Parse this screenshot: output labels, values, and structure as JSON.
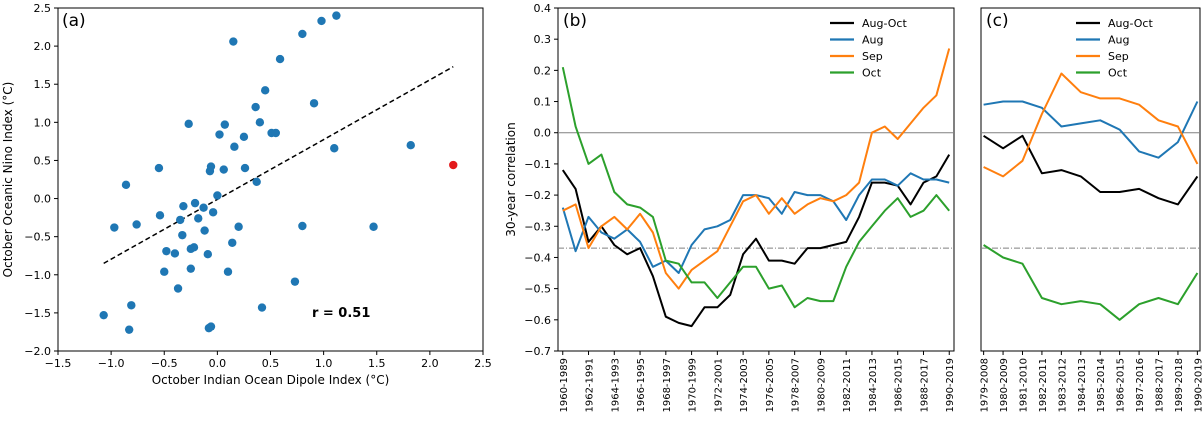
{
  "chart_data": [
    {
      "type": "scatter",
      "panel_label": "(a)",
      "xlabel": "October Indian Ocean Dipole Index ($^\\circ$C)",
      "ylabel": "October Oceanic Nino Index ($^\\circ$C)",
      "xlim": [
        -1.5,
        2.5
      ],
      "ylim": [
        -2.0,
        2.5
      ],
      "xticks": [
        -1.5,
        -1.0,
        -0.5,
        0.0,
        0.5,
        1.0,
        1.5,
        2.0,
        2.5
      ],
      "yticks": [
        -2.0,
        -1.5,
        -1.0,
        -0.5,
        0.0,
        0.5,
        1.0,
        1.5,
        2.0,
        2.5
      ],
      "xtick_labels": [
        "−1.5",
        "−1.0",
        "−0.5",
        "0.0",
        "0.5",
        "1.0",
        "1.5",
        "2.0",
        "2.5"
      ],
      "ytick_labels": [
        "−2.0",
        "−1.5",
        "−1.0",
        "−0.5",
        "0.0",
        "0.5",
        "1.0",
        "1.5",
        "2.0",
        "2.5"
      ],
      "annotation": "r = 0.51",
      "point_color": "#1f77b4",
      "highlight_color": "#e31a1c",
      "points": [
        [
          -1.07,
          -1.53
        ],
        [
          -0.97,
          -0.38
        ],
        [
          -0.83,
          -1.72
        ],
        [
          -0.81,
          -1.4
        ],
        [
          -0.86,
          0.18
        ],
        [
          -0.76,
          -0.34
        ],
        [
          -0.55,
          0.4
        ],
        [
          -0.54,
          -0.22
        ],
        [
          -0.5,
          -0.96
        ],
        [
          -0.48,
          -0.69
        ],
        [
          -0.4,
          -0.72
        ],
        [
          -0.37,
          -1.18
        ],
        [
          -0.35,
          -0.28
        ],
        [
          -0.33,
          -0.48
        ],
        [
          -0.32,
          -0.1
        ],
        [
          -0.27,
          0.98
        ],
        [
          -0.25,
          -0.66
        ],
        [
          -0.25,
          -0.92
        ],
        [
          -0.22,
          -0.64
        ],
        [
          -0.21,
          -0.06
        ],
        [
          -0.18,
          -0.26
        ],
        [
          -0.13,
          -0.12
        ],
        [
          -0.12,
          -0.42
        ],
        [
          -0.09,
          -0.73
        ],
        [
          -0.08,
          -1.7
        ],
        [
          -0.06,
          -1.68
        ],
        [
          -0.07,
          0.36
        ],
        [
          -0.06,
          0.42
        ],
        [
          -0.04,
          -0.18
        ],
        [
          0.0,
          0.04
        ],
        [
          0.02,
          0.84
        ],
        [
          0.06,
          0.38
        ],
        [
          0.07,
          0.97
        ],
        [
          0.1,
          -0.96
        ],
        [
          0.14,
          -0.58
        ],
        [
          0.15,
          2.06
        ],
        [
          0.16,
          0.68
        ],
        [
          0.2,
          -0.37
        ],
        [
          0.26,
          0.4
        ],
        [
          0.25,
          0.81
        ],
        [
          0.36,
          1.2
        ],
        [
          0.37,
          0.22
        ],
        [
          0.4,
          1.0
        ],
        [
          0.42,
          -1.43
        ],
        [
          0.45,
          1.42
        ],
        [
          0.51,
          0.86
        ],
        [
          0.55,
          0.86
        ],
        [
          0.59,
          1.83
        ],
        [
          0.73,
          -1.09
        ],
        [
          0.8,
          2.16
        ],
        [
          0.8,
          -0.36
        ],
        [
          0.91,
          1.25
        ],
        [
          0.98,
          2.33
        ],
        [
          1.1,
          0.66
        ],
        [
          1.12,
          2.4
        ],
        [
          1.47,
          -0.37
        ],
        [
          1.82,
          0.7
        ]
      ],
      "highlight_point": [
        2.22,
        0.44
      ],
      "fit_line": [
        [
          -1.07,
          -0.85
        ],
        [
          2.22,
          1.73
        ]
      ]
    },
    {
      "type": "line",
      "panel_label": "(b)",
      "ylabel": "30-year correlation",
      "ylim": [
        -0.7,
        0.4
      ],
      "yticks": [
        -0.7,
        -0.6,
        -0.5,
        -0.4,
        -0.3,
        -0.2,
        -0.1,
        0.0,
        0.1,
        0.2,
        0.3,
        0.4
      ],
      "ytick_labels": [
        "−0.7",
        "−0.6",
        "−0.5",
        "−0.4",
        "−0.3",
        "−0.2",
        "−0.1",
        "0.0",
        "0.1",
        "0.2",
        "0.3",
        "0.4"
      ],
      "x": [
        "1960-1989",
        "1961-1990",
        "1962-1991",
        "1963-1992",
        "1964-1993",
        "1965-1994",
        "1966-1995",
        "1967-1996",
        "1968-1997",
        "1969-1998",
        "1970-1999",
        "1971-2000",
        "1972-2001",
        "1973-2002",
        "1974-2003",
        "1975-2004",
        "1976-2005",
        "1977-2006",
        "1978-2007",
        "1979-2008",
        "1980-2009",
        "1981-2010",
        "1982-2011",
        "1983-2012",
        "1984-2013",
        "1985-2014",
        "1986-2015",
        "1987-2016",
        "1988-2017",
        "1989-2018",
        "1990-2019"
      ],
      "xtick_labels": [
        "1960-1989",
        "1962-1991",
        "1964-1993",
        "1966-1995",
        "1968-1997",
        "1970-1999",
        "1972-2001",
        "1974-2003",
        "1976-2005",
        "1978-2007",
        "1980-2009",
        "1982-2011",
        "1984-2013",
        "1986-2015",
        "1988-2017",
        "1990-2019"
      ],
      "reference_lines": [
        0.0,
        -0.37
      ],
      "legend_position": "top-right",
      "series": [
        {
          "name": "Aug-Oct",
          "color": "#000000",
          "values": [
            -0.12,
            -0.18,
            -0.35,
            -0.3,
            -0.36,
            -0.39,
            -0.37,
            -0.46,
            -0.59,
            -0.61,
            -0.62,
            -0.56,
            -0.56,
            -0.52,
            -0.39,
            -0.34,
            -0.41,
            -0.41,
            -0.42,
            -0.37,
            -0.37,
            -0.36,
            -0.35,
            -0.27,
            -0.16,
            -0.16,
            -0.17,
            -0.23,
            -0.16,
            -0.14,
            -0.07
          ]
        },
        {
          "name": "Aug",
          "color": "#1f77b4",
          "values": [
            -0.24,
            -0.38,
            -0.27,
            -0.32,
            -0.34,
            -0.31,
            -0.35,
            -0.43,
            -0.41,
            -0.45,
            -0.36,
            -0.31,
            -0.3,
            -0.28,
            -0.2,
            -0.2,
            -0.21,
            -0.26,
            -0.19,
            -0.2,
            -0.2,
            -0.22,
            -0.28,
            -0.2,
            -0.15,
            -0.15,
            -0.17,
            -0.13,
            -0.15,
            -0.15,
            -0.16
          ]
        },
        {
          "name": "Sep",
          "color": "#ff7f0e",
          "values": [
            -0.25,
            -0.23,
            -0.37,
            -0.3,
            -0.27,
            -0.31,
            -0.26,
            -0.32,
            -0.45,
            -0.5,
            -0.44,
            -0.41,
            -0.38,
            -0.3,
            -0.22,
            -0.2,
            -0.26,
            -0.21,
            -0.26,
            -0.23,
            -0.21,
            -0.22,
            -0.2,
            -0.16,
            0.0,
            0.02,
            -0.02,
            0.03,
            0.08,
            0.12,
            0.27
          ]
        },
        {
          "name": "Oct",
          "color": "#2ca02c",
          "values": [
            0.21,
            0.02,
            -0.1,
            -0.07,
            -0.19,
            -0.23,
            -0.24,
            -0.27,
            -0.41,
            -0.42,
            -0.48,
            -0.48,
            -0.53,
            -0.48,
            -0.43,
            -0.43,
            -0.5,
            -0.49,
            -0.56,
            -0.53,
            -0.54,
            -0.54,
            -0.43,
            -0.35,
            -0.3,
            -0.25,
            -0.21,
            -0.27,
            -0.25,
            -0.2,
            -0.25
          ]
        }
      ]
    },
    {
      "type": "line",
      "panel_label": "(c)",
      "ylim": [
        -0.7,
        0.4
      ],
      "x": [
        "1979-2008",
        "1980-2009",
        "1981-2010",
        "1982-2011",
        "1983-2012",
        "1984-2013",
        "1985-2014",
        "1986-2015",
        "1987-2016",
        "1988-2017",
        "1989-2018",
        "1990-2019"
      ],
      "xtick_labels": [
        "1979-2008",
        "1980-2009",
        "1981-2010",
        "1982-2011",
        "1983-2012",
        "1984-2013",
        "1985-2014",
        "1986-2015",
        "1987-2016",
        "1988-2017",
        "1989-2018",
        "1990-2019"
      ],
      "reference_lines": [
        0.0,
        -0.37
      ],
      "legend_position": "top-right",
      "series": [
        {
          "name": "Aug-Oct",
          "color": "#000000",
          "values": [
            -0.01,
            -0.05,
            -0.01,
            -0.13,
            -0.12,
            -0.14,
            -0.19,
            -0.19,
            -0.18,
            -0.21,
            -0.23,
            -0.14
          ]
        },
        {
          "name": "Aug",
          "color": "#1f77b4",
          "values": [
            0.09,
            0.1,
            0.1,
            0.08,
            0.02,
            0.03,
            0.04,
            0.01,
            -0.06,
            -0.08,
            -0.03,
            0.1
          ]
        },
        {
          "name": "Sep",
          "color": "#ff7f0e",
          "values": [
            -0.11,
            -0.14,
            -0.09,
            0.06,
            0.19,
            0.13,
            0.11,
            0.11,
            0.09,
            0.04,
            0.02,
            -0.1
          ]
        },
        {
          "name": "Oct",
          "color": "#2ca02c",
          "values": [
            -0.36,
            -0.4,
            -0.42,
            -0.53,
            -0.55,
            -0.54,
            -0.55,
            -0.6,
            -0.55,
            -0.53,
            -0.55,
            -0.45
          ]
        }
      ]
    }
  ]
}
